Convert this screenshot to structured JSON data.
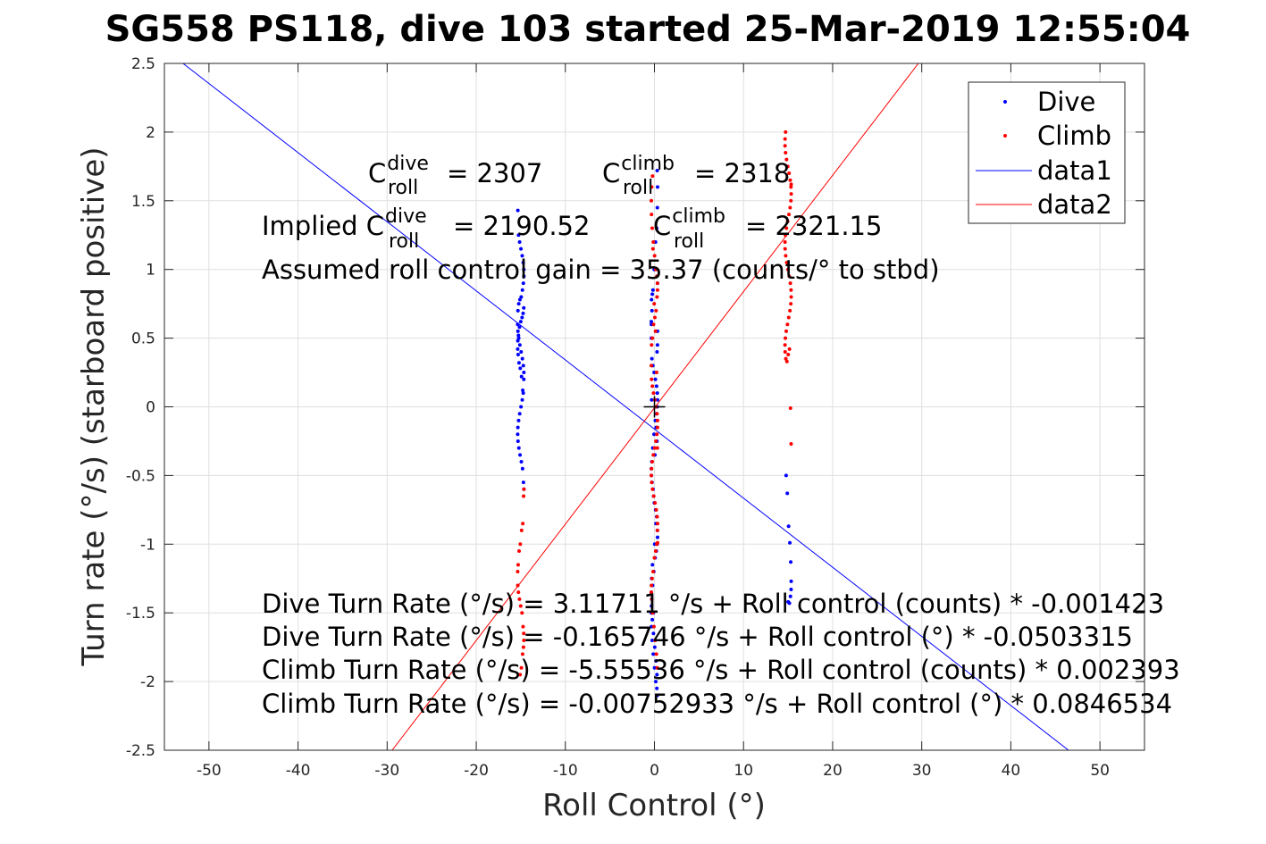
{
  "chart_data": {
    "type": "scatter",
    "title": "SG558 PS118, dive 103 started 25-Mar-2019 12:55:04",
    "xlabel": "Roll Control (°)",
    "ylabel": "Turn rate (°/s) (starboard positive)",
    "xlim": [
      -55,
      55
    ],
    "ylim": [
      -2.5,
      2.5
    ],
    "xticks": [
      -50,
      -40,
      -30,
      -20,
      -10,
      0,
      10,
      20,
      30,
      40,
      50
    ],
    "yticks": [
      -2.5,
      -2,
      -1.5,
      -1,
      -0.5,
      0,
      0.5,
      1,
      1.5,
      2,
      2.5
    ],
    "xtick_labels": [
      "-50",
      "-40",
      "-30",
      "-20",
      "-10",
      "0",
      "10",
      "20",
      "30",
      "40",
      "50"
    ],
    "ytick_labels": [
      "-2.5",
      "-2",
      "-1.5",
      "-1",
      "-0.5",
      "0",
      "0.5",
      "1",
      "1.5",
      "2",
      "2.5"
    ],
    "grid": true,
    "legend_position": "top-right",
    "legend": [
      "Dive",
      "Climb",
      "data1",
      "data2"
    ],
    "colors": {
      "dive": "#0000ff",
      "climb": "#ff0000",
      "marker": "#000000"
    },
    "series": [
      {
        "name": "Dive",
        "kind": "points",
        "color": "#0000ff",
        "x": [
          -15,
          -15,
          -15,
          -15,
          -15,
          -15,
          -15,
          -15,
          -15,
          -15,
          -15,
          -15,
          -15,
          -15,
          -15,
          -15,
          -15,
          -15,
          -15,
          -15,
          -15,
          -15,
          -15,
          -15,
          -15,
          -15,
          -15,
          -15,
          -15,
          -15,
          -15,
          -15,
          -15,
          -15,
          -15,
          -15,
          -15,
          -15,
          -15,
          -15,
          -15,
          -15,
          -15,
          -15,
          -15,
          -15,
          -15,
          -15,
          -15,
          -15,
          0,
          0,
          0,
          0,
          0,
          0,
          0,
          0,
          0,
          0,
          0,
          0,
          0,
          0,
          0,
          0,
          0,
          0,
          0,
          0,
          0,
          0,
          0,
          0,
          0,
          0,
          0,
          0,
          0,
          0,
          0,
          0,
          0,
          0,
          0,
          0,
          0,
          0,
          0,
          0,
          0,
          0,
          0,
          0,
          0,
          0,
          0,
          0,
          0,
          0,
          0,
          0,
          0,
          0,
          0,
          0,
          0,
          0,
          0,
          0,
          0,
          0,
          0,
          0,
          0,
          0,
          0,
          0,
          0,
          0,
          15,
          15,
          15,
          15,
          15,
          15,
          15,
          15,
          15,
          15
        ],
        "y": [
          1.43,
          1.25,
          1.2,
          1.15,
          1.1,
          1.05,
          1.0,
          0.95,
          0.9,
          0.85,
          0.8,
          0.78,
          0.75,
          0.7,
          0.6,
          0.55,
          0.5,
          0.45,
          0.4,
          0.35,
          0.3,
          0.25,
          0.2,
          0.1,
          0.05,
          0.0,
          -0.05,
          -0.1,
          -0.15,
          -0.2,
          -0.25,
          -0.3,
          -0.35,
          -0.4,
          -0.45,
          -0.55,
          -0.6,
          0.72,
          0.68,
          0.65,
          0.62,
          0.58,
          0.52,
          0.48,
          0.42,
          0.38,
          0.32,
          0.28,
          0.22,
          0.12,
          1.72,
          1.6,
          1.45,
          1.3,
          1.2,
          1.0,
          0.85,
          0.7,
          0.6,
          0.5,
          0.35,
          0.3,
          0.25,
          0.2,
          0.15,
          0.1,
          0.05,
          0.0,
          -0.05,
          -0.1,
          -0.2,
          -0.3,
          -0.4,
          -0.45,
          -0.5,
          -0.55,
          -0.6,
          -0.7,
          -0.75,
          -0.8,
          -0.9,
          -0.95,
          -1.0,
          -1.05,
          -1.1,
          -1.2,
          -1.3,
          -1.4,
          -1.5,
          -1.6,
          -1.7,
          -1.8,
          -1.9,
          -2.0,
          -2.05,
          -2.1,
          0.9,
          0.4,
          -0.15,
          -0.35,
          -0.65,
          -1.15,
          -1.25,
          -1.35,
          -1.45,
          -1.55,
          -1.65,
          -1.75,
          -1.85,
          -1.95,
          0.55,
          0.45,
          -0.25,
          -0.85,
          -1.0,
          -1.5,
          0.82,
          0.78,
          0.62,
          0.05,
          -0.5,
          -0.63,
          -0.87,
          -0.99,
          -1.13,
          -1.27,
          -1.33,
          -1.38,
          -1.43,
          -1.42
        ],
        "x_jitter_note": null
      },
      {
        "name": "Climb",
        "kind": "points",
        "color": "#ff0000",
        "x": [
          -15,
          -15,
          -15,
          -15,
          -15,
          -15,
          -15,
          -15,
          -15,
          -15,
          -15,
          -15,
          -15,
          -15,
          -15,
          -15,
          -15,
          -15,
          -15,
          -15,
          0,
          0,
          0,
          0,
          0,
          0,
          0,
          0,
          0,
          0,
          0,
          0,
          0,
          0,
          0,
          0,
          0,
          0,
          0,
          0,
          0,
          0,
          0,
          0,
          0,
          0,
          0,
          0,
          0,
          0,
          0,
          0,
          0,
          0,
          0,
          0,
          0,
          0,
          0,
          0,
          0,
          0,
          0,
          0,
          0,
          0,
          0,
          0,
          0,
          0,
          0,
          0,
          0,
          0,
          0,
          0,
          0,
          0,
          0,
          0,
          15,
          15,
          15,
          15,
          15,
          15,
          15,
          15,
          15,
          15,
          15,
          15,
          15,
          15,
          15,
          15,
          15,
          15,
          15,
          15,
          15,
          15,
          15,
          15,
          15,
          15,
          15,
          15,
          15,
          15,
          15,
          15,
          15,
          15,
          15,
          15,
          15,
          15,
          15,
          15
        ],
        "y": [
          -0.6,
          -0.65,
          -0.85,
          -0.9,
          -1.0,
          -1.05,
          -1.15,
          -1.2,
          -1.3,
          -1.35,
          -1.4,
          -1.45,
          -1.5,
          -1.6,
          -1.65,
          -1.7,
          -1.75,
          -1.8,
          -1.9,
          -1.95,
          1.68,
          1.6,
          1.5,
          1.4,
          1.3,
          1.2,
          1.1,
          1.0,
          0.95,
          0.9,
          0.85,
          0.8,
          0.7,
          0.65,
          0.6,
          0.5,
          0.45,
          0.3,
          0.2,
          0.15,
          0.1,
          0.05,
          0.0,
          -0.05,
          -0.1,
          -0.15,
          -0.2,
          -0.25,
          -0.3,
          -0.35,
          -0.4,
          -0.45,
          -0.5,
          -0.55,
          -0.6,
          -0.65,
          -0.7,
          -0.75,
          -0.8,
          -0.85,
          -0.9,
          -1.0,
          -1.05,
          -1.1,
          -1.2,
          -1.25,
          -1.3,
          -1.35,
          -1.4,
          -1.5,
          -1.6,
          -1.7,
          -1.8,
          -1.9,
          -0.99,
          -0.3,
          0.25,
          0.55,
          0.75,
          1.15,
          2.0,
          1.95,
          1.9,
          1.85,
          1.8,
          1.75,
          1.7,
          1.65,
          1.6,
          1.55,
          1.5,
          1.45,
          1.4,
          1.35,
          1.3,
          1.25,
          1.2,
          1.15,
          1.1,
          1.05,
          1.0,
          0.95,
          0.9,
          0.85,
          0.8,
          0.75,
          0.7,
          0.65,
          0.6,
          0.55,
          0.5,
          0.45,
          0.4,
          0.35,
          0.33,
          0.38,
          0.42,
          -0.01,
          -0.27,
          1.62
        ]
      },
      {
        "name": "data1",
        "kind": "line",
        "color": "#0000ff",
        "x": [
          -52.91,
          46.47
        ],
        "y": [
          2.5,
          -2.5
        ]
      },
      {
        "name": "data2",
        "kind": "line",
        "color": "#ff0000",
        "x": [
          -29.44,
          29.62
        ],
        "y": [
          -2.5,
          2.5
        ]
      }
    ],
    "marker_point": {
      "x": 0,
      "y": 0
    },
    "annotations": {
      "c_dive_base": "C",
      "c_dive_sup": "dive",
      "c_dive_sub": "roll",
      "c_dive_value": "= 2307",
      "c_climb_base": "C",
      "c_climb_sup": "climb",
      "c_climb_sub": "roll",
      "c_climb_value": "= 2318",
      "implied_prefix": "Implied C",
      "implied_dive_sup": "dive",
      "implied_dive_sub": "roll",
      "implied_dive_value": "= 2190.52",
      "implied_climb_base": "C",
      "implied_climb_sup": "climb",
      "implied_climb_sub": "roll",
      "implied_climb_value": "= 2321.15",
      "gain": "Assumed roll control gain = 35.37 (counts/° to stbd)",
      "eq1": "Dive Turn Rate (°/s) = 3.11711 °/s + Roll control (counts) * -0.001423",
      "eq2": "Dive Turn Rate (°/s) = -0.165746 °/s + Roll control (°) * -0.0503315",
      "eq3": "Climb Turn Rate (°/s) = -5.55536 °/s + Roll control (counts) * 0.002393",
      "eq4": "Climb Turn Rate (°/s) = -0.00752933 °/s + Roll control (°) * 0.0846534"
    }
  }
}
